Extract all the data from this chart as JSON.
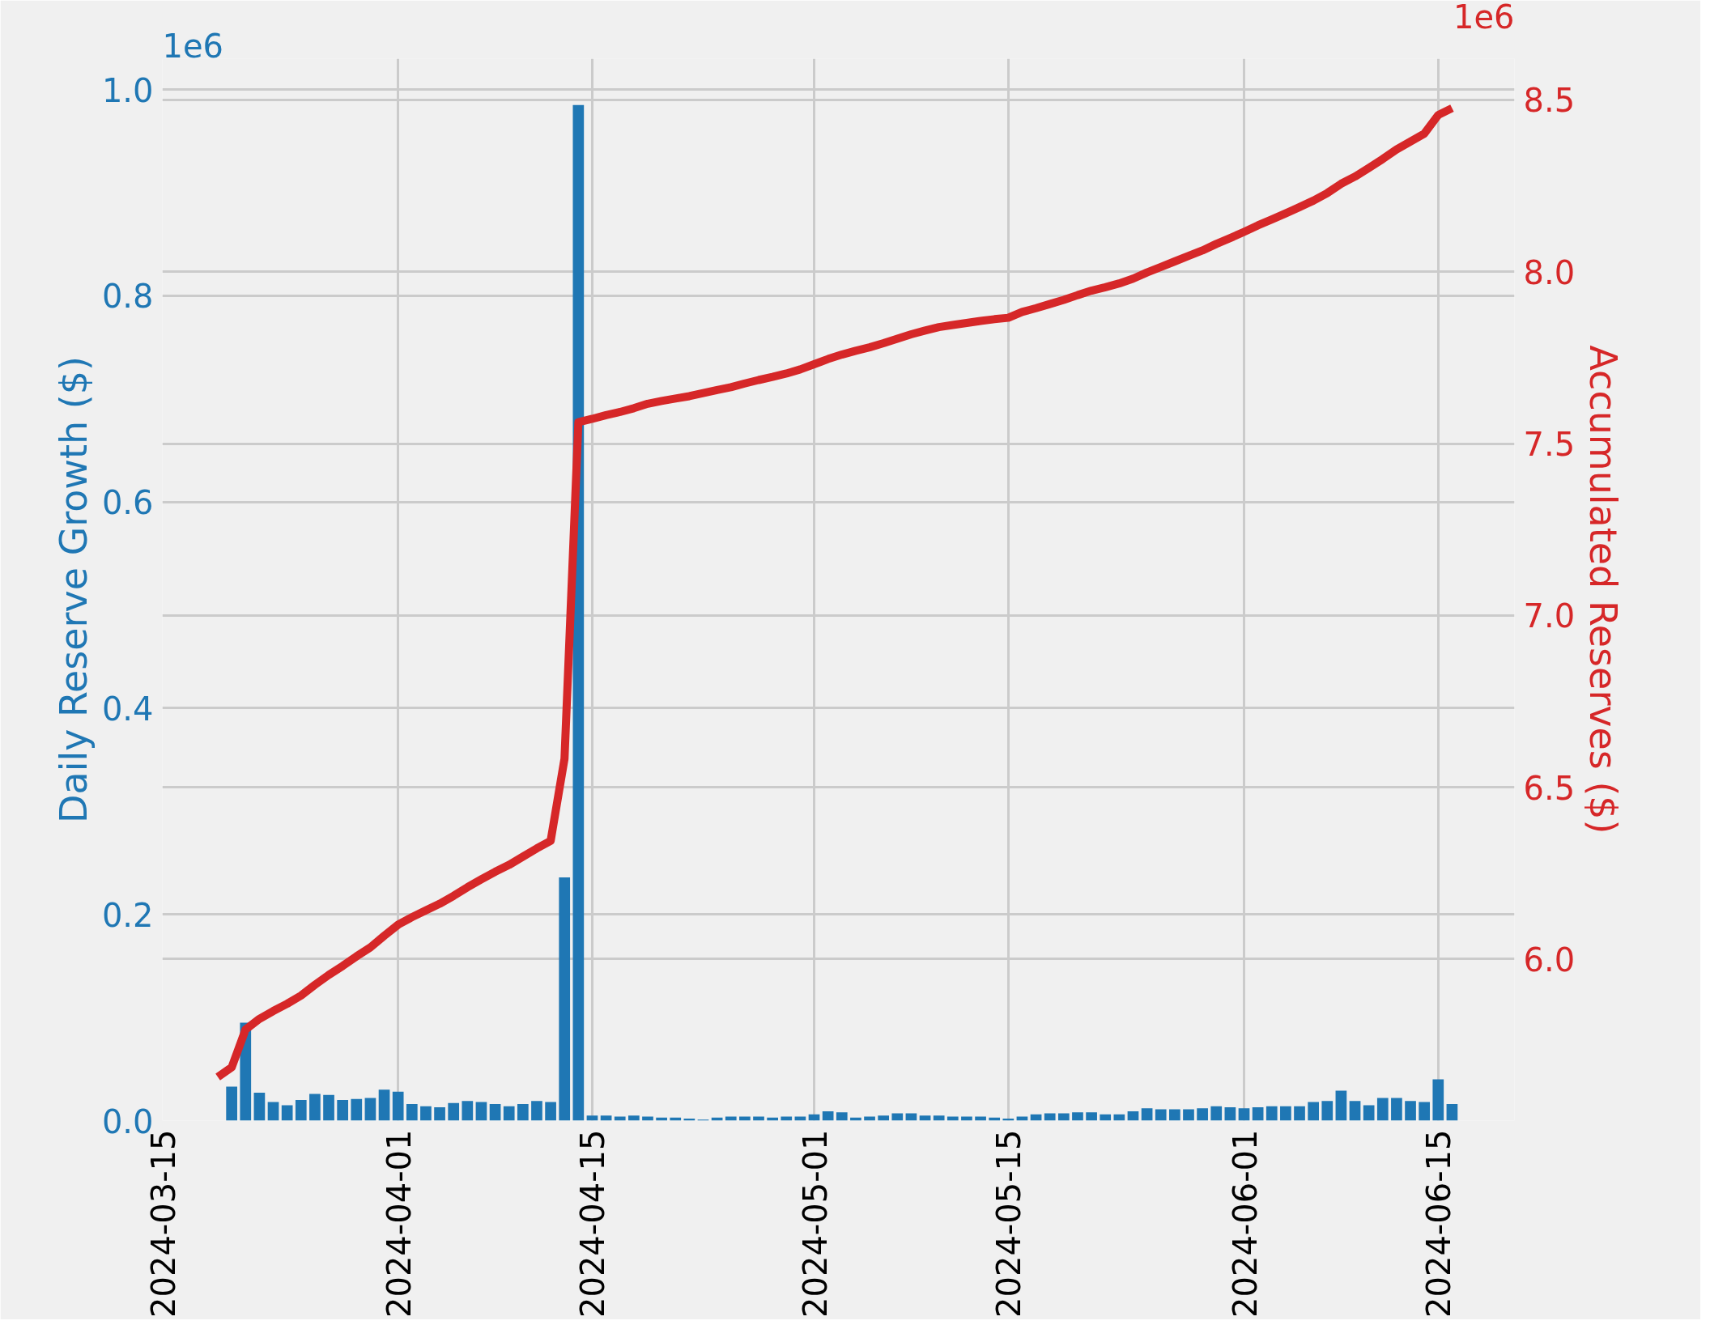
{
  "chart_data": {
    "type": "bar",
    "ylabel": "Daily Reserve Growth ($)",
    "y2label": "Accumulated Reserves ($)",
    "x": [
      "2024-03-19",
      "2024-03-20",
      "2024-03-21",
      "2024-03-22",
      "2024-03-23",
      "2024-03-24",
      "2024-03-25",
      "2024-03-26",
      "2024-03-27",
      "2024-03-28",
      "2024-03-29",
      "2024-03-30",
      "2024-03-31",
      "2024-04-01",
      "2024-04-02",
      "2024-04-03",
      "2024-04-04",
      "2024-04-05",
      "2024-04-06",
      "2024-04-07",
      "2024-04-08",
      "2024-04-09",
      "2024-04-10",
      "2024-04-11",
      "2024-04-12",
      "2024-04-13",
      "2024-04-14",
      "2024-04-15",
      "2024-04-16",
      "2024-04-17",
      "2024-04-18",
      "2024-04-19",
      "2024-04-20",
      "2024-04-21",
      "2024-04-22",
      "2024-04-23",
      "2024-04-24",
      "2024-04-25",
      "2024-04-26",
      "2024-04-27",
      "2024-04-28",
      "2024-04-29",
      "2024-04-30",
      "2024-05-01",
      "2024-05-02",
      "2024-05-03",
      "2024-05-04",
      "2024-05-05",
      "2024-05-06",
      "2024-05-07",
      "2024-05-08",
      "2024-05-09",
      "2024-05-10",
      "2024-05-11",
      "2024-05-12",
      "2024-05-13",
      "2024-05-14",
      "2024-05-15",
      "2024-05-16",
      "2024-05-17",
      "2024-05-18",
      "2024-05-19",
      "2024-05-20",
      "2024-05-21",
      "2024-05-22",
      "2024-05-23",
      "2024-05-24",
      "2024-05-25",
      "2024-05-26",
      "2024-05-27",
      "2024-05-28",
      "2024-05-29",
      "2024-05-30",
      "2024-05-31",
      "2024-06-01",
      "2024-06-02",
      "2024-06-03",
      "2024-06-04",
      "2024-06-05",
      "2024-06-06",
      "2024-06-07",
      "2024-06-08",
      "2024-06-09",
      "2024-06-10",
      "2024-06-11",
      "2024-06-12",
      "2024-06-13",
      "2024-06-14",
      "2024-06-15",
      "2024-06-16"
    ],
    "series": [
      {
        "color": "#1f77b4",
        "values": [
          null,
          0.033,
          0.095,
          0.027,
          0.018,
          0.015,
          0.02,
          0.026,
          0.025,
          0.02,
          0.021,
          0.022,
          0.03,
          0.028,
          0.016,
          0.014,
          0.013,
          0.017,
          0.019,
          0.018,
          0.016,
          0.014,
          0.016,
          0.019,
          0.018,
          0.236,
          0.985,
          0.005,
          0.005,
          0.004,
          0.005,
          0.004,
          0.003,
          0.003,
          0.002,
          0.001,
          0.003,
          0.004,
          0.004,
          0.004,
          0.003,
          0.004,
          0.004,
          0.006,
          0.009,
          0.008,
          0.003,
          0.004,
          0.005,
          0.007,
          0.007,
          0.005,
          0.005,
          0.004,
          0.004,
          0.004,
          0.003,
          0.002,
          0.004,
          0.006,
          0.007,
          0.007,
          0.008,
          0.008,
          0.006,
          0.006,
          0.009,
          0.012,
          0.011,
          0.011,
          0.011,
          0.012,
          0.014,
          0.013,
          0.012,
          0.013,
          0.014,
          0.014,
          0.014,
          0.018,
          0.019,
          0.029,
          0.019,
          0.015,
          0.022,
          0.022,
          0.019,
          0.018,
          0.04,
          0.016
        ]
      },
      {
        "type": "line",
        "axis": "y2",
        "color": "#d62728",
        "values": [
          5.657,
          5.685,
          5.795,
          5.826,
          5.849,
          5.87,
          5.894,
          5.925,
          5.954,
          5.98,
          6.008,
          6.034,
          6.068,
          6.1,
          6.122,
          6.142,
          6.161,
          6.184,
          6.209,
          6.232,
          6.254,
          6.274,
          6.298,
          6.322,
          6.344,
          6.583,
          7.562,
          7.572,
          7.583,
          7.592,
          7.603,
          7.616,
          7.624,
          7.631,
          7.638,
          7.647,
          7.656,
          7.664,
          7.675,
          7.685,
          7.694,
          7.704,
          7.716,
          7.731,
          7.746,
          7.759,
          7.77,
          7.78,
          7.792,
          7.805,
          7.818,
          7.829,
          7.839,
          7.845,
          7.851,
          7.857,
          7.862,
          7.866,
          7.883,
          7.894,
          7.906,
          7.918,
          7.932,
          7.945,
          7.955,
          7.966,
          7.98,
          7.998,
          8.014,
          8.03,
          8.046,
          8.062,
          8.081,
          8.098,
          8.116,
          8.135,
          8.152,
          8.17,
          8.188,
          8.207,
          8.229,
          8.256,
          8.277,
          8.302,
          8.328,
          8.356,
          8.379,
          8.402,
          8.456,
          8.476
        ]
      }
    ],
    "xlim": [
      "2024-03-15",
      "2024-06-20T12:00"
    ],
    "xticks": [
      "2024-03-15",
      "2024-04-01",
      "2024-04-15",
      "2024-05-01",
      "2024-05-15",
      "2024-06-01",
      "2024-06-15"
    ],
    "ylim": [
      0,
      1.03
    ],
    "yticks": [
      {
        "value": 0,
        "label": "0.0"
      },
      0.2,
      0.4,
      0.6,
      0.8,
      {
        "value": 1,
        "label": "1.0"
      }
    ],
    "y2lim": [
      5.53,
      8.62
    ],
    "y2ticks": [
      {
        "value": 6,
        "label": "6.0"
      },
      {
        "value": 6.5,
        "label": "6.5"
      },
      {
        "value": 7,
        "label": "7.0"
      },
      {
        "value": 7.5,
        "label": "7.5"
      },
      {
        "value": 8,
        "label": "8.0"
      },
      {
        "value": 8.5,
        "label": "8.5"
      }
    ],
    "annotations": [
      "1e6",
      "1e6"
    ],
    "grid": true
  }
}
